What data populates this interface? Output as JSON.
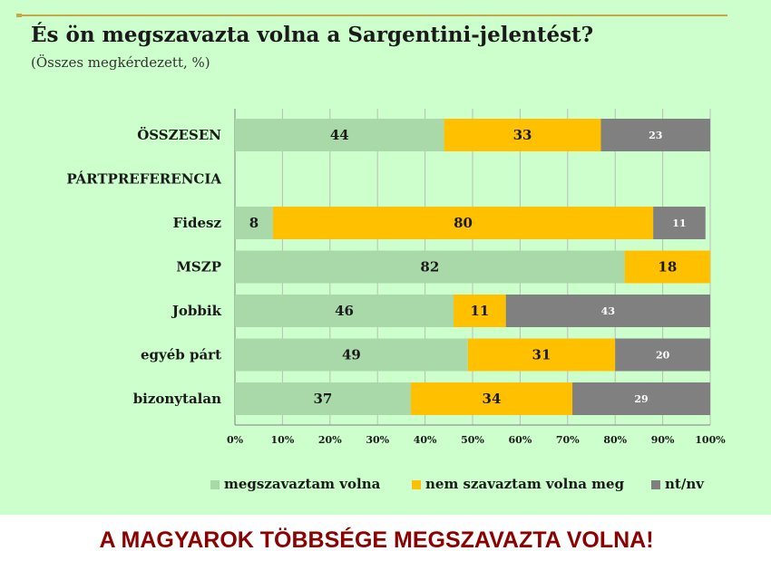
{
  "slide": {
    "title": "És ön megszavazta volna a Sargentini-jelentést?",
    "subtitle": "(Összes megkérdezett, %)",
    "banner": "A MAGYAROK TÖBBSÉGE MEGSZAVAZTA VOLNA!"
  },
  "colors": {
    "background": "#ccffcc",
    "series": [
      "#a9d8a9",
      "#ffc000",
      "#808080"
    ],
    "banner_text": "#8b0000"
  },
  "chart_data": {
    "type": "bar",
    "orientation": "horizontal",
    "stacked": true,
    "title": "És ön megszavazta volna a Sargentini-jelentést?",
    "subtitle": "(Összes megkérdezett, %)",
    "categories": [
      "ÖSSZESEN",
      "PÁRTPREFERENCIA",
      "Fidesz",
      "MSZP",
      "Jobbik",
      "egyéb párt",
      "bizonytalan"
    ],
    "series": [
      {
        "name": "megszavaztam volna",
        "values": [
          44,
          null,
          8,
          82,
          46,
          49,
          37
        ]
      },
      {
        "name": "nem szavaztam volna meg",
        "values": [
          33,
          null,
          80,
          18,
          11,
          31,
          34
        ]
      },
      {
        "name": "nt/nv",
        "values": [
          23,
          null,
          11,
          null,
          43,
          20,
          29
        ]
      }
    ],
    "x_ticks": [
      "0%",
      "10%",
      "20%",
      "30%",
      "40%",
      "50%",
      "60%",
      "70%",
      "80%",
      "90%",
      "100%"
    ],
    "xlim": [
      0,
      100
    ],
    "grid": true,
    "legend_position": "bottom"
  }
}
